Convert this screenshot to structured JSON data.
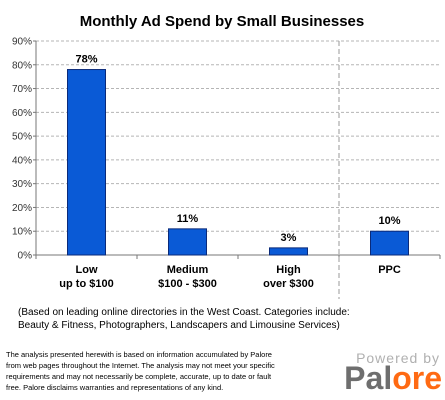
{
  "chart_data": {
    "type": "bar",
    "title": "Monthly Ad Spend by Small Businesses",
    "xlabel": "",
    "ylabel": "",
    "ylim": [
      0,
      90
    ],
    "yticks": [
      "0%",
      "10%",
      "20%",
      "30%",
      "40%",
      "50%",
      "60%",
      "70%",
      "80%",
      "90%"
    ],
    "grid": true,
    "categories": [
      {
        "line1": "Low",
        "line2": "up to $100"
      },
      {
        "line1": "Medium",
        "line2": "$100 - $300"
      },
      {
        "line1": "High",
        "line2": "over $300"
      },
      {
        "line1": "PPC",
        "line2": ""
      }
    ],
    "values": [
      78,
      11,
      3,
      10
    ],
    "data_labels": [
      "78%",
      "11%",
      "3%",
      "10%"
    ],
    "separator_before_category": 3,
    "bar_color": "#0a5ad6",
    "bar_edge_color": "#0a2a7a"
  },
  "note": {
    "line1": "(Based on leading online directories in the West Coast. Categories include:",
    "line2": "Beauty & Fitness, Photographers, Landscapers and Limousine Services)"
  },
  "disclaimer": {
    "line1": "The analysis presented herewith is based on information accumulated by Palore",
    "line2": "from web pages throughout the Internet. The analysis may not meet your specific",
    "line3": "requirements and may not necessarily be complete, accurate, up to date or fault",
    "line4": "free. Palore disclaims warranties and representations of any kind."
  },
  "branding": {
    "powered_by": "Powered by",
    "logo_part1": "Pal",
    "logo_part2": "ore",
    "logo_color_gray": "#6e6e6e",
    "logo_color_orange": "#ff6a13"
  }
}
